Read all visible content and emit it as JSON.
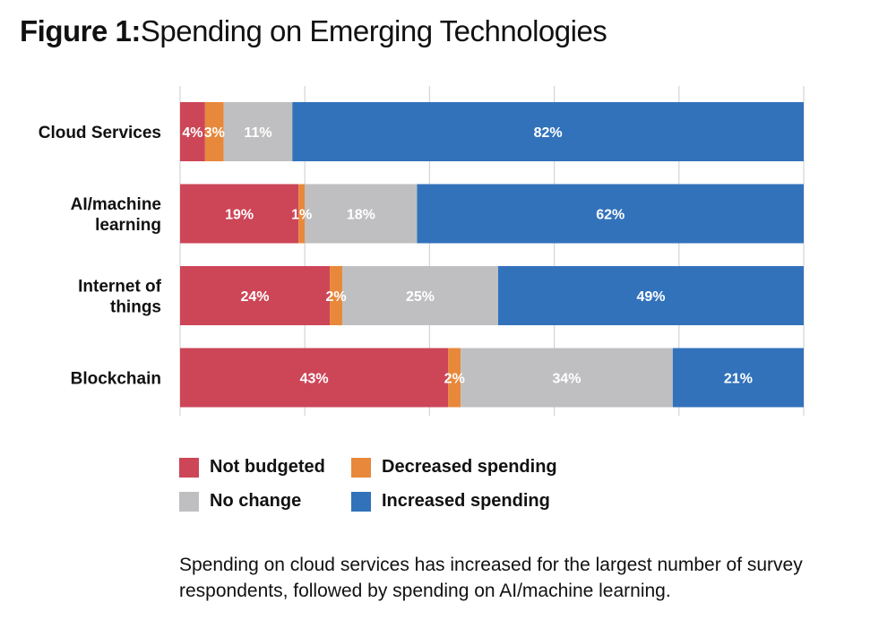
{
  "title": {
    "figure": "Figure 1:",
    "text": "Spending on Emerging Technologies"
  },
  "caption": "Spending on cloud services has increased for the largest number of survey respondents, followed by spending on AI/machine learning.",
  "chart_data": {
    "type": "bar",
    "orientation": "horizontal",
    "stacked": true,
    "title": "Figure 1: Spending on Emerging Technologies",
    "categories": [
      "Cloud Services",
      "AI/machine learning",
      "Internet of things",
      "Blockchain"
    ],
    "category_lines": [
      [
        "Cloud Services"
      ],
      [
        "AI/machine",
        "learning"
      ],
      [
        "Internet of",
        "things"
      ],
      [
        "Blockchain"
      ]
    ],
    "series": [
      {
        "name": "Not budgeted",
        "color": "#cc4658",
        "values": [
          4,
          19,
          24,
          43
        ],
        "labels": [
          "4%",
          "19%",
          "24%",
          "43%"
        ]
      },
      {
        "name": "Decreased spending",
        "color": "#e8883a",
        "values": [
          3,
          1,
          2,
          2
        ],
        "labels": [
          "3%",
          "1%",
          "2%",
          "2%"
        ]
      },
      {
        "name": "No change",
        "color": "#bfbfc1",
        "values": [
          11,
          18,
          25,
          34
        ],
        "labels": [
          "11%",
          "18%",
          "25%",
          "34%"
        ]
      },
      {
        "name": "Increased spending",
        "color": "#3272bb",
        "values": [
          82,
          62,
          49,
          21
        ],
        "labels": [
          "82%",
          "62%",
          "49%",
          "21%"
        ]
      }
    ],
    "xlim": [
      0,
      100
    ],
    "grid": true,
    "legend": "bottom"
  }
}
